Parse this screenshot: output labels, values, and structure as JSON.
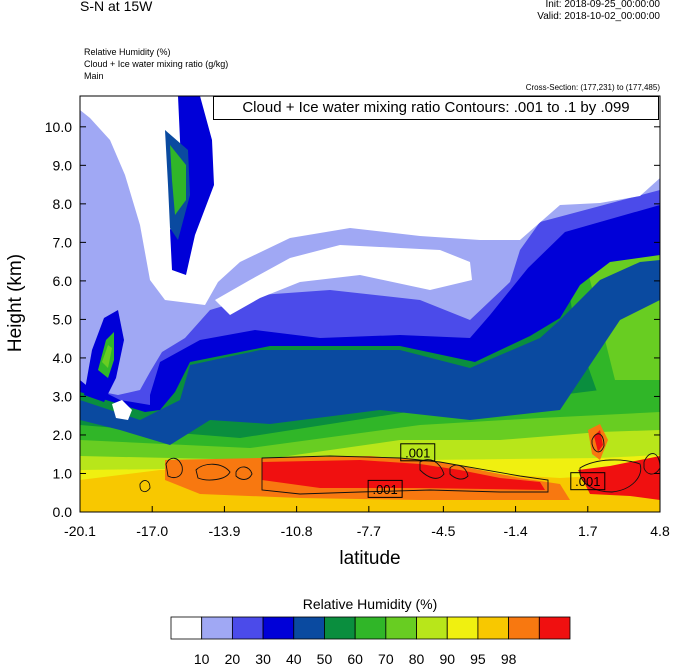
{
  "header": {
    "title": "S-N at 15W",
    "init": "Init: 2018-09-25_00:00:00",
    "valid": "Valid: 2018-10-02_00:00:00",
    "fields": [
      "Relative Humidity   (%)",
      "Cloud + Ice water mixing ratio   (g/kg)",
      "Main"
    ],
    "cross_section": "Cross-Section: (177,231) to (177,485)"
  },
  "chart_data": {
    "type": "heatmap",
    "title": "Cloud + Ice water mixing ratio Contours: .001 to .1 by .099",
    "xlabel": "latitude",
    "ylabel": "Height (km)",
    "x_ticks": [
      "-20.1",
      "-17.0",
      "-13.9",
      "-10.8",
      "-7.7",
      "-4.5",
      "-1.4",
      "1.7",
      "4.8"
    ],
    "xlim": [
      -20.1,
      4.8
    ],
    "y_ticks": [
      "0.0",
      "1.0",
      "2.0",
      "3.0",
      "4.0",
      "5.0",
      "6.0",
      "7.0",
      "8.0",
      "9.0",
      "10.0"
    ],
    "ylim": [
      0,
      10.8
    ],
    "contour_labels": [
      ".001",
      ".001",
      ".001"
    ],
    "contour_label_positions": [
      {
        "x": -5.6,
        "y": 1.55
      },
      {
        "x": -7.0,
        "y": 0.6
      },
      {
        "x": 1.7,
        "y": 0.8
      }
    ],
    "colorbar": {
      "title": "Relative Humidity  (%)",
      "levels": [
        "10",
        "20",
        "30",
        "40",
        "50",
        "60",
        "70",
        "80",
        "90",
        "95",
        "98"
      ],
      "colors": [
        "#ffffff",
        "#a0a8f4",
        "#4b4bea",
        "#0000d8",
        "#0a4aa0",
        "#0a8e3e",
        "#30b628",
        "#68cd22",
        "#b8e61a",
        "#f0f010",
        "#f8c800",
        "#f87810",
        "#f01010"
      ]
    }
  }
}
